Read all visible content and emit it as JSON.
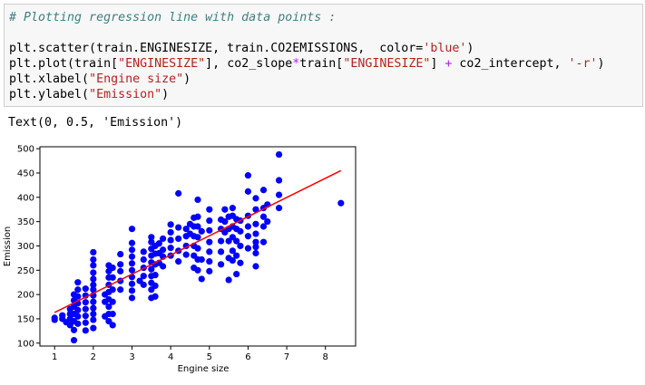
{
  "code_cell": {
    "lines": [
      [
        {
          "t": "# Plotting regression line with data points :",
          "c": "comment"
        }
      ],
      [],
      [
        {
          "t": "plt.scatter(train.ENGINESIZE, train.CO2EMISSIONS,  color="
        },
        {
          "t": "'blue'",
          "c": "str"
        },
        {
          "t": ")"
        }
      ],
      [
        {
          "t": "plt.plot(train["
        },
        {
          "t": "\"ENGINESIZE\"",
          "c": "str"
        },
        {
          "t": "], co2_slope"
        },
        {
          "t": "*",
          "c": "op"
        },
        {
          "t": "train["
        },
        {
          "t": "\"ENGINESIZE\"",
          "c": "str"
        },
        {
          "t": "] "
        },
        {
          "t": "+",
          "c": "op"
        },
        {
          "t": " co2_intercept, "
        },
        {
          "t": "'-r'",
          "c": "str"
        },
        {
          "t": ")"
        }
      ],
      [
        {
          "t": "plt.xlabel("
        },
        {
          "t": "\"Engine size\"",
          "c": "str"
        },
        {
          "t": ")"
        }
      ],
      [
        {
          "t": "plt.ylabel("
        },
        {
          "t": "\"Emission\"",
          "c": "str"
        },
        {
          "t": ")"
        }
      ]
    ]
  },
  "output": {
    "text": "Text(0, 0.5, 'Emission')"
  },
  "chart_data": {
    "type": "scatter",
    "xlabel": "Engine size",
    "ylabel": "Emission",
    "xlim": [
      0.62,
      8.78
    ],
    "ylim": [
      94,
      504
    ],
    "xticks": [
      1,
      2,
      3,
      4,
      5,
      6,
      7,
      8
    ],
    "yticks": [
      100,
      150,
      200,
      250,
      300,
      350,
      400,
      450,
      500
    ],
    "grid": false,
    "point_color": "#0000ff",
    "line_color": "#ff0000",
    "regression_line": {
      "x": [
        1.0,
        8.4
      ],
      "y": [
        163,
        455
      ]
    },
    "points": [
      [
        1.0,
        148
      ],
      [
        1.0,
        152
      ],
      [
        1.2,
        150
      ],
      [
        1.2,
        157
      ],
      [
        1.3,
        143
      ],
      [
        1.4,
        137
      ],
      [
        1.4,
        150
      ],
      [
        1.4,
        160
      ],
      [
        1.4,
        170
      ],
      [
        1.5,
        106
      ],
      [
        1.5,
        127
      ],
      [
        1.5,
        145
      ],
      [
        1.5,
        160
      ],
      [
        1.5,
        175
      ],
      [
        1.5,
        188
      ],
      [
        1.5,
        200
      ],
      [
        1.6,
        140
      ],
      [
        1.6,
        155
      ],
      [
        1.6,
        168
      ],
      [
        1.6,
        182
      ],
      [
        1.6,
        196
      ],
      [
        1.6,
        210
      ],
      [
        1.6,
        225
      ],
      [
        1.8,
        126
      ],
      [
        1.8,
        142
      ],
      [
        1.8,
        156
      ],
      [
        1.8,
        170
      ],
      [
        1.8,
        184
      ],
      [
        1.8,
        198
      ],
      [
        1.8,
        212
      ],
      [
        2.0,
        131
      ],
      [
        2.0,
        148
      ],
      [
        2.0,
        160
      ],
      [
        2.0,
        172
      ],
      [
        2.0,
        185
      ],
      [
        2.0,
        198
      ],
      [
        2.0,
        210
      ],
      [
        2.0,
        220
      ],
      [
        2.0,
        232
      ],
      [
        2.0,
        245
      ],
      [
        2.0,
        260
      ],
      [
        2.0,
        272
      ],
      [
        2.0,
        287
      ],
      [
        2.3,
        155
      ],
      [
        2.3,
        185
      ],
      [
        2.3,
        200
      ],
      [
        2.4,
        145
      ],
      [
        2.4,
        160
      ],
      [
        2.4,
        175
      ],
      [
        2.4,
        190
      ],
      [
        2.4,
        205
      ],
      [
        2.4,
        220
      ],
      [
        2.4,
        235
      ],
      [
        2.4,
        248
      ],
      [
        2.4,
        260
      ],
      [
        2.5,
        137
      ],
      [
        2.5,
        160
      ],
      [
        2.5,
        185
      ],
      [
        2.5,
        210
      ],
      [
        2.5,
        235
      ],
      [
        2.5,
        255
      ],
      [
        2.7,
        210
      ],
      [
        2.7,
        228
      ],
      [
        2.7,
        248
      ],
      [
        2.7,
        262
      ],
      [
        2.7,
        283
      ],
      [
        3.0,
        193
      ],
      [
        3.0,
        208
      ],
      [
        3.0,
        222
      ],
      [
        3.0,
        236
      ],
      [
        3.0,
        250
      ],
      [
        3.0,
        264
      ],
      [
        3.0,
        278
      ],
      [
        3.0,
        292
      ],
      [
        3.0,
        306
      ],
      [
        3.0,
        335
      ],
      [
        3.2,
        228
      ],
      [
        3.3,
        220
      ],
      [
        3.3,
        238
      ],
      [
        3.3,
        255
      ],
      [
        3.3,
        272
      ],
      [
        3.3,
        288
      ],
      [
        3.5,
        193
      ],
      [
        3.5,
        210
      ],
      [
        3.5,
        224
      ],
      [
        3.5,
        238
      ],
      [
        3.5,
        252
      ],
      [
        3.5,
        266
      ],
      [
        3.5,
        280
      ],
      [
        3.5,
        294
      ],
      [
        3.5,
        308
      ],
      [
        3.5,
        318
      ],
      [
        3.6,
        196
      ],
      [
        3.6,
        218
      ],
      [
        3.6,
        240
      ],
      [
        3.6,
        262
      ],
      [
        3.6,
        284
      ],
      [
        3.6,
        300
      ],
      [
        3.7,
        265
      ],
      [
        3.7,
        285
      ],
      [
        3.7,
        305
      ],
      [
        3.8,
        258
      ],
      [
        3.8,
        278
      ],
      [
        3.8,
        292
      ],
      [
        3.8,
        315
      ],
      [
        4.0,
        280
      ],
      [
        4.0,
        296
      ],
      [
        4.0,
        312
      ],
      [
        4.0,
        328
      ],
      [
        4.0,
        344
      ],
      [
        4.2,
        268
      ],
      [
        4.2,
        290
      ],
      [
        4.2,
        315
      ],
      [
        4.2,
        338
      ],
      [
        4.2,
        408
      ],
      [
        4.4,
        282
      ],
      [
        4.4,
        300
      ],
      [
        4.4,
        320
      ],
      [
        4.4,
        335
      ],
      [
        4.5,
        325
      ],
      [
        4.5,
        345
      ],
      [
        4.6,
        255
      ],
      [
        4.6,
        280
      ],
      [
        4.6,
        300
      ],
      [
        4.6,
        320
      ],
      [
        4.6,
        340
      ],
      [
        4.6,
        358
      ],
      [
        4.7,
        250
      ],
      [
        4.7,
        272
      ],
      [
        4.7,
        295
      ],
      [
        4.7,
        318
      ],
      [
        4.7,
        340
      ],
      [
        4.7,
        360
      ],
      [
        4.7,
        395
      ],
      [
        4.8,
        232
      ],
      [
        4.8,
        272
      ],
      [
        4.8,
        330
      ],
      [
        5.0,
        248
      ],
      [
        5.0,
        268
      ],
      [
        5.0,
        288
      ],
      [
        5.0,
        308
      ],
      [
        5.0,
        332
      ],
      [
        5.0,
        352
      ],
      [
        5.0,
        375
      ],
      [
        5.3,
        262
      ],
      [
        5.3,
        288
      ],
      [
        5.3,
        310
      ],
      [
        5.3,
        335
      ],
      [
        5.3,
        354
      ],
      [
        5.4,
        328
      ],
      [
        5.4,
        350
      ],
      [
        5.4,
        375
      ],
      [
        5.5,
        230
      ],
      [
        5.5,
        275
      ],
      [
        5.5,
        310
      ],
      [
        5.5,
        335
      ],
      [
        5.5,
        360
      ],
      [
        5.6,
        270
      ],
      [
        5.6,
        290
      ],
      [
        5.6,
        318
      ],
      [
        5.6,
        340
      ],
      [
        5.6,
        362
      ],
      [
        5.6,
        378
      ],
      [
        5.7,
        242
      ],
      [
        5.7,
        280
      ],
      [
        5.7,
        310
      ],
      [
        5.7,
        335
      ],
      [
        5.7,
        355
      ],
      [
        5.8,
        265
      ],
      [
        5.8,
        300
      ],
      [
        5.8,
        330
      ],
      [
        5.8,
        352
      ],
      [
        6.0,
        295
      ],
      [
        6.0,
        320
      ],
      [
        6.0,
        340
      ],
      [
        6.0,
        362
      ],
      [
        6.0,
        412
      ],
      [
        6.0,
        445
      ],
      [
        6.2,
        258
      ],
      [
        6.2,
        285
      ],
      [
        6.2,
        298
      ],
      [
        6.2,
        308
      ],
      [
        6.2,
        325
      ],
      [
        6.2,
        345
      ],
      [
        6.2,
        375
      ],
      [
        6.2,
        398
      ],
      [
        6.4,
        308
      ],
      [
        6.4,
        340
      ],
      [
        6.4,
        360
      ],
      [
        6.4,
        378
      ],
      [
        6.4,
        415
      ],
      [
        6.5,
        350
      ],
      [
        6.5,
        385
      ],
      [
        6.8,
        378
      ],
      [
        6.8,
        405
      ],
      [
        6.8,
        435
      ],
      [
        6.8,
        488
      ],
      [
        8.4,
        388
      ]
    ]
  }
}
